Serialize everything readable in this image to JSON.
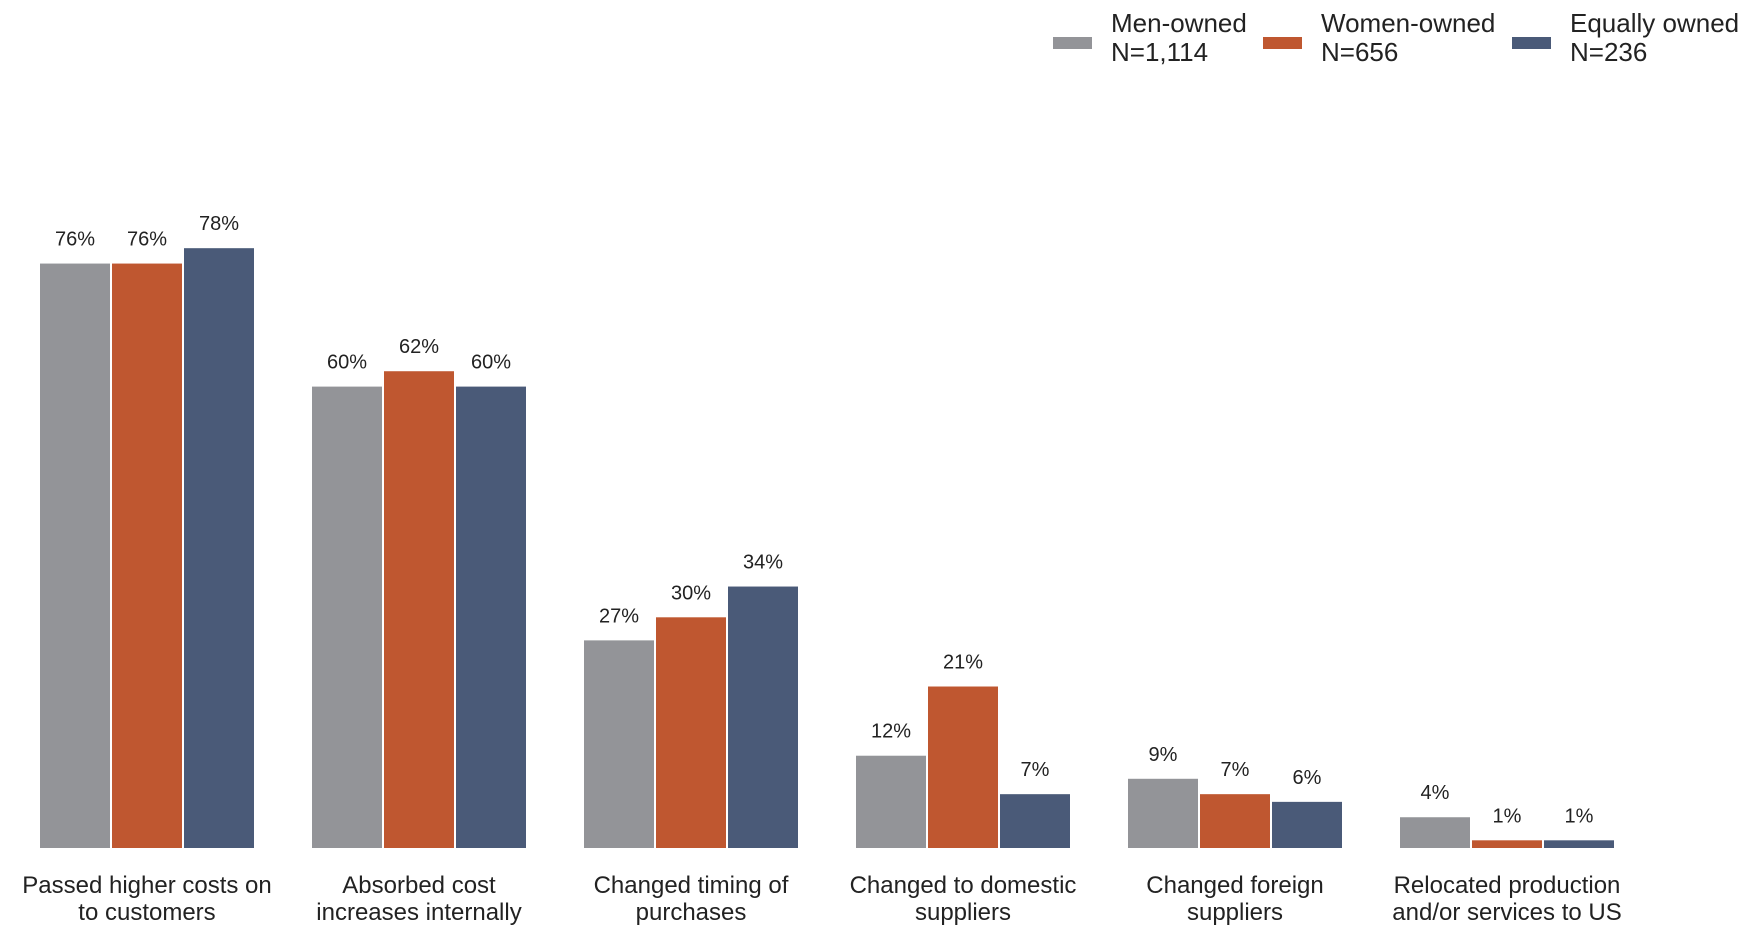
{
  "chart_data": {
    "type": "bar",
    "title": "",
    "xlabel": "",
    "ylabel": "",
    "ylim": [
      0,
      100
    ],
    "grid": false,
    "legend_placement": "top-right",
    "value_suffix": "%",
    "categories": [
      [
        "Passed higher costs on",
        "to customers"
      ],
      [
        "Absorbed cost",
        "increases internally"
      ],
      [
        "Changed timing of",
        "purchases"
      ],
      [
        "Changed to domestic",
        "suppliers"
      ],
      [
        "Changed foreign",
        "suppliers"
      ],
      [
        "Relocated production",
        "and/or services to US"
      ]
    ],
    "series": [
      {
        "name": "Men-owned",
        "n_label": "N=1,114",
        "color": "#939498",
        "values": [
          76,
          60,
          27,
          12,
          9,
          4
        ]
      },
      {
        "name": "Women-owned",
        "n_label": "N=656",
        "color": "#BF5730",
        "values": [
          76,
          62,
          30,
          21,
          7,
          1
        ]
      },
      {
        "name": "Equally owned",
        "n_label": "N=236",
        "color": "#4A5A78",
        "values": [
          78,
          60,
          34,
          7,
          6,
          1
        ]
      }
    ]
  }
}
